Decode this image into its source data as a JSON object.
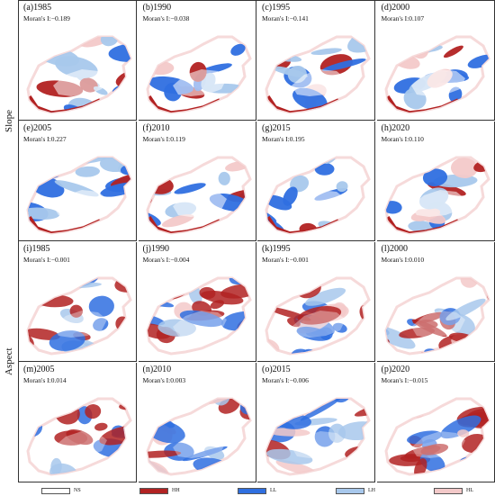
{
  "rows": [
    {
      "label": "Slope"
    },
    {
      "label": "Aspect"
    }
  ],
  "panels": [
    {
      "title": "(a)1985",
      "stat": "Moran's I:−0.189",
      "mix": "slope",
      "seed": 1
    },
    {
      "title": "(b)1990",
      "stat": "Moran's I:−0.038",
      "mix": "slope",
      "seed": 2
    },
    {
      "title": "(c)1995",
      "stat": "Moran's I:−0.141",
      "mix": "slope",
      "seed": 3
    },
    {
      "title": "(d)2000",
      "stat": "Moran's I:0.107",
      "mix": "slope",
      "seed": 4
    },
    {
      "title": "(e)2005",
      "stat": "Moran's I:0.227",
      "mix": "slope",
      "seed": 5
    },
    {
      "title": "(f)2010",
      "stat": "Moran's I:0.119",
      "mix": "slope",
      "seed": 6
    },
    {
      "title": "(g)2015",
      "stat": "Moran's I:0.195",
      "mix": "slope",
      "seed": 7
    },
    {
      "title": "(h)2020",
      "stat": "Moran's I:0.110",
      "mix": "slope",
      "seed": 8
    },
    {
      "title": "(i)1985",
      "stat": "Moran's I:−0.001",
      "mix": "aspect",
      "seed": 9
    },
    {
      "title": "(j)1990",
      "stat": "Moran's I:−0.004",
      "mix": "aspect",
      "seed": 10
    },
    {
      "title": "(k)1995",
      "stat": "Moran's I:−0.001",
      "mix": "aspect",
      "seed": 11
    },
    {
      "title": "(l)2000",
      "stat": "Moran's I:0.010",
      "mix": "aspect",
      "seed": 12
    },
    {
      "title": "(m)2005",
      "stat": "Moran's I:0.014",
      "mix": "aspect",
      "seed": 13
    },
    {
      "title": "(n)2010",
      "stat": "Moran's I:0.003",
      "mix": "aspect",
      "seed": 14
    },
    {
      "title": "(o)2015",
      "stat": "Moran's I:−0.006",
      "mix": "aspect",
      "seed": 15
    },
    {
      "title": "(p)2020",
      "stat": "Moran's I:−0.015",
      "mix": "aspect",
      "seed": 16
    }
  ],
  "legend": [
    {
      "label": "NS",
      "color": "#ffffff"
    },
    {
      "label": "HH",
      "color": "#b22222"
    },
    {
      "label": "LL",
      "color": "#2f6fe0"
    },
    {
      "label": "LH",
      "color": "#a8c8ec"
    },
    {
      "label": "HL",
      "color": "#f3c9c9"
    }
  ],
  "colors": {
    "HH": "#b22222",
    "LL": "#2f6fe0",
    "LH": "#a8c8ec",
    "HL": "#f3c9c9",
    "NS": "#ffffff",
    "outline": "#f6dada"
  }
}
